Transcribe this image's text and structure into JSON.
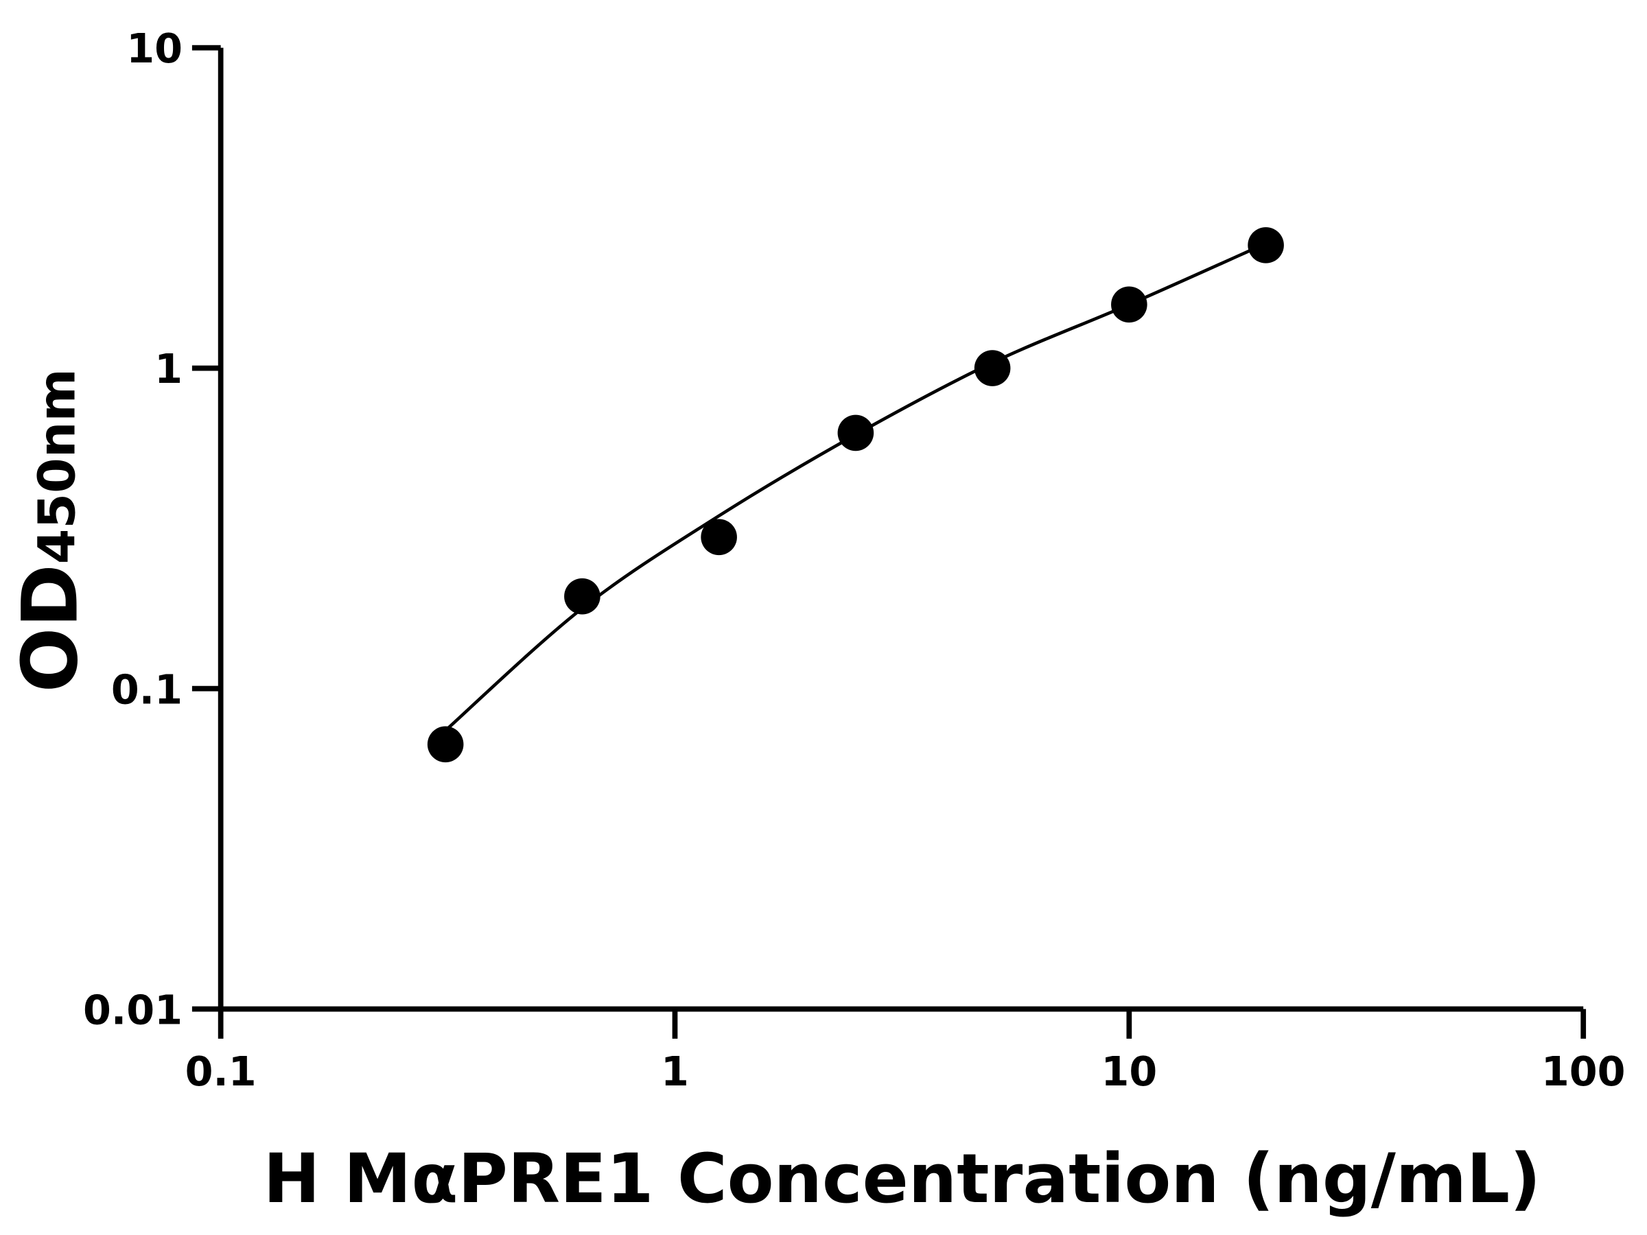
{
  "chart_data": {
    "type": "scatter",
    "x_label": "H MαPRE1 Concentration (ng/mL)",
    "y_label": "OD",
    "y_label_subscript": "450nm",
    "x_log": true,
    "y_log": true,
    "xlim": [
      0.1,
      100
    ],
    "xticks": [
      0.1,
      1,
      10,
      100
    ],
    "ylim": [
      0.01,
      10
    ],
    "yticks": [
      0.01,
      0.1,
      1,
      10
    ],
    "grid": false,
    "series": [
      {
        "color": "#000000",
        "mode": "markers",
        "x": [
          0.3125,
          0.625,
          1.25,
          2.5,
          5,
          10,
          20
        ],
        "values": [
          0.067,
          0.194,
          0.297,
          0.628,
          1.0,
          1.58,
          2.42
        ]
      },
      {
        "color": "#000000",
        "mode": "line",
        "x": [
          0.3125,
          0.625,
          1.25,
          2.5,
          5,
          10,
          20
        ],
        "values": [
          0.074,
          0.178,
          0.346,
          0.62,
          1.04,
          1.58,
          2.45
        ]
      }
    ]
  }
}
